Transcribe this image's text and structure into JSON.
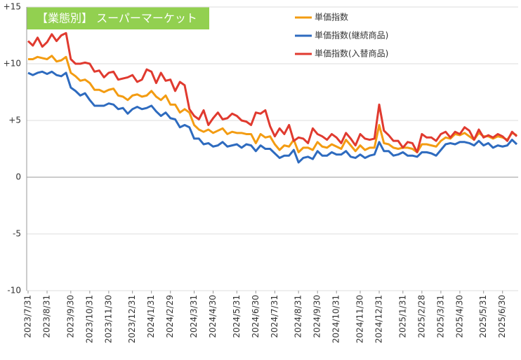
{
  "chart_data": {
    "type": "line",
    "title": "【業態別】 スーパーマーケット",
    "title_color": "#92d050",
    "categories": [
      "2023/7/31",
      null,
      null,
      null,
      "2023/8/31",
      null,
      null,
      null,
      null,
      "2023/9/30",
      null,
      null,
      null,
      "2023/10/31",
      null,
      null,
      null,
      "2023/11/30",
      null,
      null,
      null,
      null,
      "2023/12/31",
      null,
      null,
      null,
      "2024/1/31",
      null,
      null,
      null,
      "2024/2/29",
      null,
      null,
      null,
      null,
      "2024/3/31",
      null,
      null,
      null,
      "2024/4/30",
      null,
      null,
      null,
      null,
      "2024/5/31",
      null,
      null,
      null,
      "2024/6/30",
      null,
      null,
      null,
      "2024/7/31",
      null,
      null,
      null,
      null,
      "2024/8/31",
      null,
      null,
      null,
      "2024/9/30",
      null,
      null,
      null,
      "2024/10/31",
      null,
      null,
      null,
      null,
      "2024/11/30",
      null,
      null,
      null,
      "2024/12/31",
      null,
      null,
      null,
      null,
      "2025/1/31",
      null,
      null,
      null,
      "2025/2/28",
      null,
      null,
      null,
      "2025/3/31",
      null,
      null,
      null,
      "2025/4/30",
      null,
      null,
      null,
      null,
      "2025/5/31",
      null,
      null,
      null,
      "2025/6/30",
      null,
      null,
      null
    ],
    "series": [
      {
        "name": "単価指数",
        "color": "#f39c12",
        "values": [
          10.4,
          10.4,
          10.6,
          10.5,
          10.4,
          10.7,
          10.2,
          10.3,
          10.6,
          9.2,
          8.9,
          8.5,
          8.6,
          8.3,
          7.7,
          7.7,
          7.5,
          7.7,
          7.8,
          7.2,
          7.1,
          6.8,
          7.2,
          7.3,
          7.1,
          7.2,
          7.6,
          7.1,
          6.8,
          7.2,
          6.4,
          6.4,
          5.7,
          6.0,
          5.7,
          4.6,
          4.2,
          4.0,
          4.2,
          3.9,
          4.1,
          4.3,
          3.8,
          4.0,
          3.9,
          3.9,
          3.8,
          3.8,
          3.0,
          3.8,
          3.5,
          3.6,
          2.9,
          2.4,
          2.8,
          2.7,
          3.3,
          2.2,
          2.6,
          2.6,
          2.4,
          3.1,
          2.7,
          2.6,
          2.9,
          2.7,
          2.5,
          3.3,
          2.8,
          2.3,
          2.8,
          2.4,
          2.6,
          2.6,
          4.6,
          3.0,
          2.9,
          2.6,
          2.5,
          2.6,
          2.6,
          2.5,
          2.2,
          2.9,
          2.9,
          2.8,
          2.7,
          3.2,
          3.5,
          3.4,
          3.8,
          3.7,
          3.9,
          3.6,
          3.3,
          3.9,
          3.6,
          3.6,
          3.4,
          3.6,
          3.5,
          3.3,
          3.9,
          3.7
        ]
      },
      {
        "name": "単価指数(継続商品)",
        "color": "#2e6bbf",
        "values": [
          9.2,
          9.0,
          9.2,
          9.3,
          9.1,
          9.3,
          9.0,
          8.9,
          9.2,
          7.9,
          7.6,
          7.2,
          7.4,
          6.8,
          6.3,
          6.3,
          6.3,
          6.5,
          6.4,
          6.0,
          6.1,
          5.6,
          6.0,
          6.2,
          6.0,
          6.1,
          6.3,
          5.8,
          5.4,
          5.7,
          5.2,
          5.1,
          4.4,
          4.6,
          4.4,
          3.4,
          3.4,
          2.9,
          3.0,
          2.7,
          2.8,
          3.1,
          2.7,
          2.8,
          2.9,
          2.6,
          2.9,
          2.8,
          2.3,
          2.8,
          2.5,
          2.5,
          2.1,
          1.7,
          1.9,
          1.9,
          2.4,
          1.3,
          1.7,
          1.8,
          1.6,
          2.3,
          1.9,
          1.9,
          2.2,
          2.0,
          2.0,
          2.3,
          1.8,
          1.7,
          2.0,
          1.7,
          1.9,
          2.0,
          3.1,
          2.3,
          2.3,
          1.9,
          2.0,
          2.2,
          1.9,
          1.9,
          1.8,
          2.2,
          2.2,
          2.1,
          1.9,
          2.4,
          2.9,
          3.0,
          2.9,
          3.1,
          3.1,
          3.0,
          2.8,
          3.2,
          2.8,
          3.0,
          2.6,
          2.8,
          2.7,
          2.8,
          3.3,
          2.9
        ]
      },
      {
        "name": "単価指数(入替商品)",
        "color": "#e03a2f",
        "values": [
          12.0,
          11.6,
          12.3,
          11.5,
          11.9,
          12.6,
          12.0,
          12.5,
          12.7,
          10.4,
          10.0,
          10.0,
          10.1,
          10.0,
          9.3,
          9.4,
          8.8,
          9.2,
          9.3,
          8.6,
          8.7,
          8.8,
          9.0,
          8.4,
          8.6,
          9.5,
          9.3,
          8.3,
          9.2,
          8.5,
          8.6,
          7.6,
          8.4,
          8.1,
          6.0,
          5.4,
          5.1,
          5.9,
          4.6,
          5.2,
          5.7,
          5.1,
          5.2,
          5.6,
          5.4,
          5.0,
          4.9,
          4.6,
          5.7,
          5.6,
          5.9,
          4.5,
          3.6,
          4.3,
          3.8,
          4.6,
          3.2,
          3.5,
          3.4,
          3.0,
          4.3,
          3.8,
          3.6,
          3.3,
          3.8,
          3.5,
          3.0,
          3.9,
          3.4,
          2.8,
          3.8,
          3.4,
          3.3,
          3.4,
          6.4,
          4.1,
          3.7,
          3.2,
          3.2,
          2.6,
          3.1,
          3.0,
          2.2,
          3.8,
          3.5,
          3.5,
          3.2,
          3.8,
          4.0,
          3.5,
          4.0,
          3.8,
          4.4,
          4.1,
          3.3,
          4.2,
          3.5,
          3.7,
          3.5,
          3.8,
          3.6,
          3.2,
          4.0,
          3.6
        ]
      }
    ],
    "ylim": [
      -10,
      15
    ],
    "yticks": [
      -10,
      -5,
      0,
      {
        "value": 5,
        "label": "+5"
      },
      {
        "value": 10,
        "label": "+10"
      },
      {
        "value": 15,
        "label": "+15"
      }
    ],
    "grid": true,
    "legend": "top-right"
  }
}
